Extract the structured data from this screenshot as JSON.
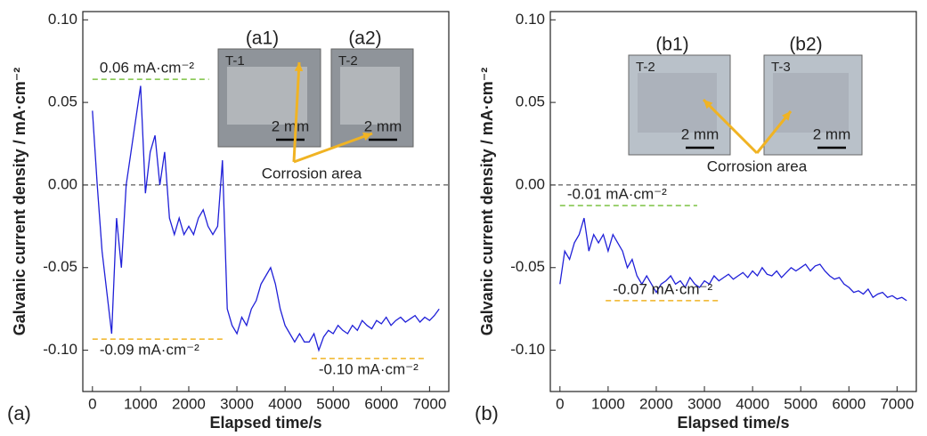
{
  "chart_data": [
    {
      "type": "line",
      "panel_label": "(a)",
      "xlabel": "Elapsed time/s",
      "ylabel": "Galvanic current density / mA·cm⁻²",
      "xlim": [
        -200,
        7400
      ],
      "ylim": [
        -0.125,
        0.105
      ],
      "xticks": [
        0,
        1000,
        2000,
        3000,
        4000,
        5000,
        6000,
        7000
      ],
      "yticks": [
        {
          "value": -0.1,
          "label": "-0.10"
        },
        -0.05,
        {
          "value": 0,
          "label": "0.00"
        },
        0.05,
        {
          "value": 0.1,
          "label": "0.10"
        }
      ],
      "x": [
        0,
        100,
        200,
        300,
        400,
        500,
        600,
        700,
        800,
        900,
        1000,
        1100,
        1200,
        1300,
        1400,
        1500,
        1600,
        1700,
        1800,
        1900,
        2000,
        2100,
        2200,
        2300,
        2400,
        2500,
        2600,
        2700,
        2800,
        2900,
        3000,
        3100,
        3200,
        3300,
        3400,
        3500,
        3600,
        3700,
        3800,
        3900,
        4000,
        4100,
        4200,
        4300,
        4400,
        4500,
        4600,
        4700,
        4800,
        4900,
        5000,
        5100,
        5200,
        5300,
        5400,
        5500,
        5600,
        5700,
        5800,
        5900,
        6000,
        6100,
        6200,
        6300,
        6400,
        6500,
        6600,
        6700,
        6800,
        6900,
        7000,
        7100,
        7200
      ],
      "series": [
        {
          "color": "#2020d8",
          "values": [
            0.045,
            0.0,
            -0.04,
            -0.065,
            -0.09,
            -0.02,
            -0.05,
            0.0,
            0.02,
            0.04,
            0.06,
            -0.005,
            0.02,
            0.03,
            0.0,
            0.02,
            -0.02,
            -0.03,
            -0.02,
            -0.03,
            -0.025,
            -0.03,
            -0.02,
            -0.015,
            -0.025,
            -0.03,
            -0.025,
            0.015,
            -0.075,
            -0.085,
            -0.09,
            -0.08,
            -0.085,
            -0.075,
            -0.07,
            -0.06,
            -0.055,
            -0.05,
            -0.06,
            -0.075,
            -0.085,
            -0.09,
            -0.095,
            -0.09,
            -0.095,
            -0.095,
            -0.09,
            -0.1,
            -0.092,
            -0.088,
            -0.09,
            -0.085,
            -0.088,
            -0.09,
            -0.085,
            -0.088,
            -0.082,
            -0.085,
            -0.087,
            -0.082,
            -0.084,
            -0.08,
            -0.085,
            -0.082,
            -0.08,
            -0.083,
            -0.081,
            -0.079,
            -0.083,
            -0.08,
            -0.082,
            -0.079,
            -0.075
          ]
        }
      ],
      "zero_line": 0,
      "annotations": [
        {
          "text": "0.06 mA·cm⁻²",
          "value": 0.064,
          "x": [
            0,
            2420
          ],
          "color": "#7cc242"
        },
        {
          "text": "-0.09 mA·cm⁻²",
          "value": -0.0933,
          "x": [
            0,
            2700
          ],
          "color": "#f0b323"
        },
        {
          "text": "-0.10 mA·cm⁻²",
          "value": -0.105,
          "x": [
            4550,
            6950
          ],
          "color": "#f0b323"
        }
      ],
      "insets": [
        {
          "label": "(a1)",
          "tag": "T-1",
          "scale": "2 mm"
        },
        {
          "label": "(a2)",
          "tag": "T-2",
          "scale": "2 mm"
        }
      ],
      "callout": "Corrosion area"
    },
    {
      "type": "line",
      "panel_label": "(b)",
      "xlabel": "Elapsed time/s",
      "ylabel": "Galvanic current density / mA·cm⁻²",
      "xlim": [
        -200,
        7400
      ],
      "ylim": [
        -0.125,
        0.105
      ],
      "xticks": [
        0,
        1000,
        2000,
        3000,
        4000,
        5000,
        6000,
        7000
      ],
      "yticks": [
        {
          "value": -0.1,
          "label": "-0.10"
        },
        -0.05,
        {
          "value": 0,
          "label": "0.00"
        },
        0.05,
        {
          "value": 0.1,
          "label": "0.10"
        }
      ],
      "x": [
        0,
        100,
        200,
        300,
        400,
        500,
        600,
        700,
        800,
        900,
        1000,
        1100,
        1200,
        1300,
        1400,
        1500,
        1600,
        1700,
        1800,
        1900,
        2000,
        2100,
        2200,
        2300,
        2400,
        2500,
        2600,
        2700,
        2800,
        2900,
        3000,
        3100,
        3200,
        3300,
        3400,
        3500,
        3600,
        3700,
        3800,
        3900,
        4000,
        4100,
        4200,
        4300,
        4400,
        4500,
        4600,
        4700,
        4800,
        4900,
        5000,
        5100,
        5200,
        5300,
        5400,
        5500,
        5600,
        5700,
        5800,
        5900,
        6000,
        6100,
        6200,
        6300,
        6400,
        6500,
        6600,
        6700,
        6800,
        6900,
        7000,
        7100,
        7200
      ],
      "series": [
        {
          "color": "#2020d8",
          "values": [
            -0.06,
            -0.04,
            -0.045,
            -0.035,
            -0.03,
            -0.02,
            -0.04,
            -0.03,
            -0.035,
            -0.03,
            -0.04,
            -0.03,
            -0.035,
            -0.04,
            -0.05,
            -0.045,
            -0.055,
            -0.06,
            -0.055,
            -0.06,
            -0.065,
            -0.06,
            -0.058,
            -0.055,
            -0.06,
            -0.058,
            -0.062,
            -0.056,
            -0.06,
            -0.062,
            -0.058,
            -0.06,
            -0.055,
            -0.058,
            -0.056,
            -0.054,
            -0.057,
            -0.055,
            -0.053,
            -0.056,
            -0.052,
            -0.055,
            -0.05,
            -0.054,
            -0.055,
            -0.052,
            -0.056,
            -0.053,
            -0.05,
            -0.052,
            -0.05,
            -0.048,
            -0.052,
            -0.049,
            -0.048,
            -0.052,
            -0.055,
            -0.057,
            -0.056,
            -0.06,
            -0.062,
            -0.065,
            -0.064,
            -0.066,
            -0.063,
            -0.068,
            -0.066,
            -0.065,
            -0.068,
            -0.067,
            -0.069,
            -0.068,
            -0.07
          ]
        }
      ],
      "zero_line": 0,
      "annotations": [
        {
          "text": "-0.01 mA·cm⁻²",
          "value": -0.0124,
          "x": [
            0,
            2850
          ],
          "color": "#7cc242"
        },
        {
          "text": "-0.07 mA·cm⁻²",
          "value": -0.07,
          "x": [
            950,
            3350
          ],
          "color": "#f0b323"
        }
      ],
      "insets": [
        {
          "label": "(b1)",
          "tag": "T-2",
          "scale": "2 mm"
        },
        {
          "label": "(b2)",
          "tag": "T-3",
          "scale": "2 mm"
        }
      ],
      "callout": "Corrosion area"
    }
  ]
}
